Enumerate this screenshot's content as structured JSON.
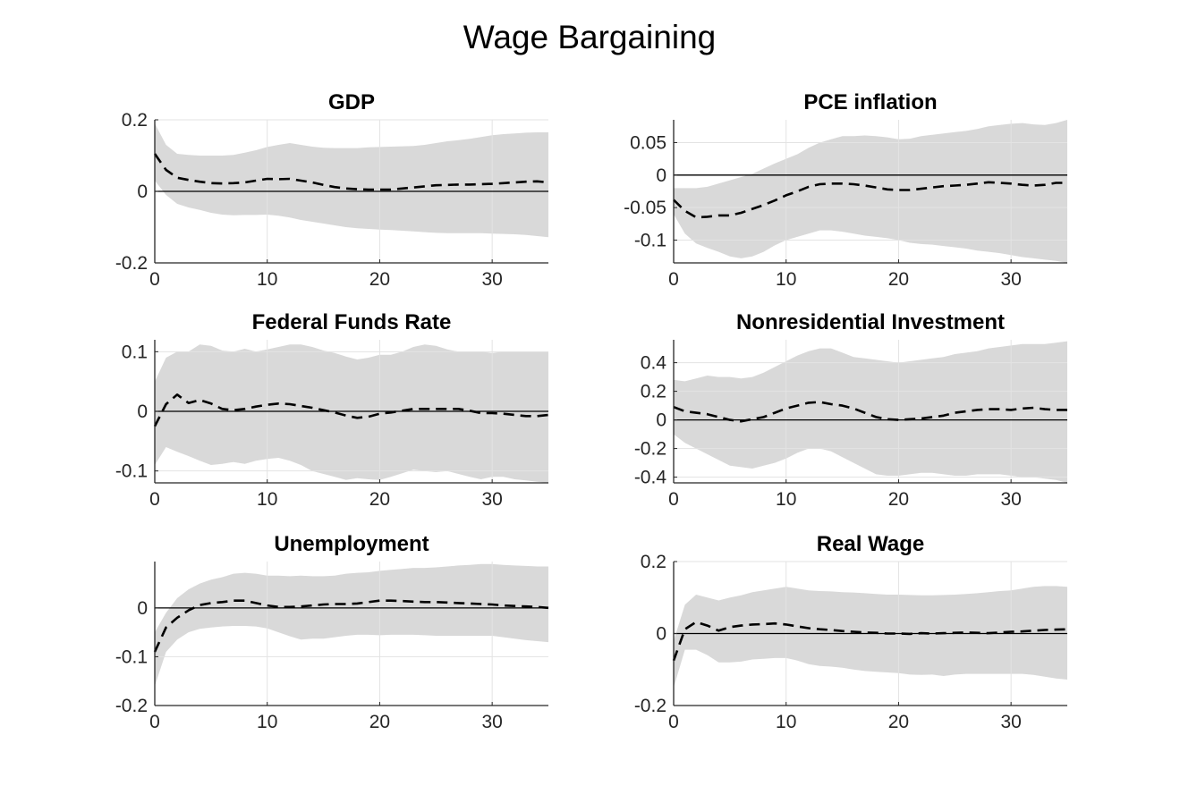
{
  "figure": {
    "title": "Wage Bargaining"
  },
  "chart_data": [
    {
      "type": "line",
      "title": "GDP",
      "xlim": [
        0,
        35
      ],
      "ylim": [
        -0.2,
        0.2
      ],
      "xticks": [
        0,
        10,
        20,
        30
      ],
      "xtick_labels": [
        "0",
        "10",
        "20",
        "30"
      ],
      "yticks": [
        -0.2,
        0,
        0.2
      ],
      "ytick_labels": [
        "-0.2",
        "0",
        "0.2"
      ],
      "grid": true,
      "x": [
        0,
        1,
        2,
        3,
        4,
        5,
        6,
        7,
        8,
        9,
        10,
        11,
        12,
        13,
        14,
        15,
        16,
        17,
        18,
        19,
        20,
        21,
        22,
        23,
        24,
        25,
        26,
        27,
        28,
        29,
        30,
        31,
        32,
        33,
        34,
        35
      ],
      "median": [
        0.105,
        0.06,
        0.038,
        0.032,
        0.027,
        0.023,
        0.022,
        0.023,
        0.025,
        0.03,
        0.035,
        0.034,
        0.035,
        0.03,
        0.025,
        0.018,
        0.012,
        0.008,
        0.006,
        0.005,
        0.005,
        0.005,
        0.008,
        0.011,
        0.014,
        0.017,
        0.018,
        0.019,
        0.019,
        0.02,
        0.021,
        0.023,
        0.025,
        0.027,
        0.028,
        0.025
      ],
      "band_upper": [
        0.19,
        0.13,
        0.105,
        0.102,
        0.1,
        0.1,
        0.1,
        0.102,
        0.108,
        0.115,
        0.124,
        0.13,
        0.135,
        0.13,
        0.125,
        0.122,
        0.121,
        0.121,
        0.121,
        0.123,
        0.124,
        0.125,
        0.126,
        0.127,
        0.13,
        0.135,
        0.14,
        0.143,
        0.147,
        0.152,
        0.157,
        0.16,
        0.162,
        0.164,
        0.165,
        0.165
      ],
      "band_lower": [
        0.03,
        -0.01,
        -0.035,
        -0.045,
        -0.052,
        -0.06,
        -0.065,
        -0.067,
        -0.066,
        -0.066,
        -0.065,
        -0.068,
        -0.073,
        -0.08,
        -0.085,
        -0.09,
        -0.095,
        -0.1,
        -0.103,
        -0.105,
        -0.107,
        -0.108,
        -0.11,
        -0.112,
        -0.114,
        -0.116,
        -0.117,
        -0.117,
        -0.117,
        -0.117,
        -0.118,
        -0.119,
        -0.12,
        -0.122,
        -0.125,
        -0.128
      ],
      "zero_line": 0
    },
    {
      "type": "line",
      "title": "PCE inflation",
      "xlim": [
        0,
        35
      ],
      "ylim": [
        -0.135,
        0.085
      ],
      "xticks": [
        0,
        10,
        20,
        30
      ],
      "xtick_labels": [
        "0",
        "10",
        "20",
        "30"
      ],
      "yticks": [
        -0.1,
        -0.05,
        0,
        0.05
      ],
      "ytick_labels": [
        "-0.1",
        "-0.05",
        "0",
        "0.05"
      ],
      "grid": true,
      "x": [
        0,
        1,
        2,
        3,
        4,
        5,
        6,
        7,
        8,
        9,
        10,
        11,
        12,
        13,
        14,
        15,
        16,
        17,
        18,
        19,
        20,
        21,
        22,
        23,
        24,
        25,
        26,
        27,
        28,
        29,
        30,
        31,
        32,
        33,
        34,
        35
      ],
      "median": [
        -0.038,
        -0.055,
        -0.065,
        -0.064,
        -0.062,
        -0.062,
        -0.058,
        -0.052,
        -0.046,
        -0.039,
        -0.031,
        -0.025,
        -0.018,
        -0.014,
        -0.013,
        -0.013,
        -0.014,
        -0.016,
        -0.019,
        -0.022,
        -0.023,
        -0.023,
        -0.021,
        -0.019,
        -0.017,
        -0.016,
        -0.015,
        -0.013,
        -0.011,
        -0.012,
        -0.013,
        -0.015,
        -0.016,
        -0.015,
        -0.012,
        -0.012
      ],
      "band_upper": [
        -0.02,
        -0.02,
        -0.02,
        -0.018,
        -0.013,
        -0.008,
        -0.003,
        0.002,
        0.01,
        0.018,
        0.025,
        0.032,
        0.042,
        0.05,
        0.055,
        0.06,
        0.06,
        0.061,
        0.06,
        0.058,
        0.055,
        0.056,
        0.06,
        0.062,
        0.064,
        0.066,
        0.068,
        0.071,
        0.075,
        0.077,
        0.079,
        0.08,
        0.078,
        0.077,
        0.08,
        0.085
      ],
      "band_lower": [
        -0.06,
        -0.09,
        -0.105,
        -0.112,
        -0.118,
        -0.125,
        -0.128,
        -0.125,
        -0.118,
        -0.108,
        -0.1,
        -0.095,
        -0.09,
        -0.085,
        -0.085,
        -0.087,
        -0.09,
        -0.093,
        -0.095,
        -0.097,
        -0.1,
        -0.104,
        -0.106,
        -0.107,
        -0.109,
        -0.111,
        -0.113,
        -0.116,
        -0.118,
        -0.12,
        -0.123,
        -0.126,
        -0.128,
        -0.13,
        -0.132,
        -0.135
      ],
      "zero_line": 0
    },
    {
      "type": "line",
      "title": "Federal Funds Rate",
      "xlim": [
        0,
        35
      ],
      "ylim": [
        -0.12,
        0.12
      ],
      "xticks": [
        0,
        10,
        20,
        30
      ],
      "xtick_labels": [
        "0",
        "10",
        "20",
        "30"
      ],
      "yticks": [
        -0.1,
        0,
        0.1
      ],
      "ytick_labels": [
        "-0.1",
        "0",
        "0.1"
      ],
      "grid": true,
      "x": [
        0,
        1,
        2,
        3,
        4,
        5,
        6,
        7,
        8,
        9,
        10,
        11,
        12,
        13,
        14,
        15,
        16,
        17,
        18,
        19,
        20,
        21,
        22,
        23,
        24,
        25,
        26,
        27,
        28,
        29,
        30,
        31,
        32,
        33,
        34,
        35
      ],
      "median": [
        -0.025,
        0.012,
        0.028,
        0.014,
        0.019,
        0.013,
        0.004,
        0.002,
        0.004,
        0.008,
        0.011,
        0.013,
        0.012,
        0.009,
        0.006,
        0.002,
        -0.002,
        -0.007,
        -0.011,
        -0.009,
        -0.004,
        -0.002,
        0.001,
        0.004,
        0.004,
        0.004,
        0.004,
        0.004,
        0.001,
        -0.003,
        -0.003,
        -0.004,
        -0.006,
        -0.008,
        -0.008,
        -0.006
      ],
      "band_upper": [
        0.05,
        0.09,
        0.1,
        0.1,
        0.112,
        0.11,
        0.102,
        0.1,
        0.105,
        0.1,
        0.104,
        0.108,
        0.112,
        0.112,
        0.108,
        0.102,
        0.098,
        0.092,
        0.087,
        0.09,
        0.095,
        0.095,
        0.1,
        0.108,
        0.112,
        0.11,
        0.104,
        0.1,
        0.1,
        0.1,
        0.098,
        0.1,
        0.1,
        0.1,
        0.1,
        0.1
      ],
      "band_lower": [
        -0.09,
        -0.06,
        -0.068,
        -0.075,
        -0.083,
        -0.09,
        -0.088,
        -0.085,
        -0.088,
        -0.083,
        -0.08,
        -0.078,
        -0.083,
        -0.09,
        -0.1,
        -0.105,
        -0.11,
        -0.115,
        -0.112,
        -0.114,
        -0.115,
        -0.11,
        -0.104,
        -0.098,
        -0.1,
        -0.102,
        -0.1,
        -0.105,
        -0.11,
        -0.114,
        -0.11,
        -0.11,
        -0.114,
        -0.116,
        -0.118,
        -0.12
      ],
      "zero_line": 0
    },
    {
      "type": "line",
      "title": "Nonresidential Investment",
      "xlim": [
        0,
        35
      ],
      "ylim": [
        -0.44,
        0.56
      ],
      "xticks": [
        0,
        10,
        20,
        30
      ],
      "xtick_labels": [
        "0",
        "10",
        "20",
        "30"
      ],
      "yticks": [
        -0.4,
        -0.2,
        0,
        0.2,
        0.4
      ],
      "ytick_labels": [
        "-0.4",
        "-0.2",
        "0",
        "0.2",
        "0.4"
      ],
      "grid": true,
      "x": [
        0,
        1,
        2,
        3,
        4,
        5,
        6,
        7,
        8,
        9,
        10,
        11,
        12,
        13,
        14,
        15,
        16,
        17,
        18,
        19,
        20,
        21,
        22,
        23,
        24,
        25,
        26,
        27,
        28,
        29,
        30,
        31,
        32,
        33,
        34,
        35
      ],
      "median": [
        0.09,
        0.06,
        0.05,
        0.04,
        0.02,
        0.0,
        -0.01,
        0.005,
        0.02,
        0.05,
        0.08,
        0.1,
        0.12,
        0.125,
        0.11,
        0.1,
        0.08,
        0.05,
        0.02,
        0.005,
        0.0,
        0.005,
        0.01,
        0.02,
        0.03,
        0.05,
        0.06,
        0.07,
        0.075,
        0.075,
        0.07,
        0.08,
        0.085,
        0.075,
        0.07,
        0.07
      ],
      "band_upper": [
        0.28,
        0.27,
        0.29,
        0.31,
        0.3,
        0.3,
        0.29,
        0.3,
        0.33,
        0.37,
        0.41,
        0.45,
        0.48,
        0.5,
        0.5,
        0.47,
        0.44,
        0.43,
        0.42,
        0.41,
        0.4,
        0.41,
        0.42,
        0.43,
        0.44,
        0.46,
        0.47,
        0.48,
        0.5,
        0.51,
        0.52,
        0.53,
        0.53,
        0.53,
        0.54,
        0.55
      ],
      "band_lower": [
        -0.1,
        -0.16,
        -0.2,
        -0.24,
        -0.28,
        -0.32,
        -0.33,
        -0.34,
        -0.32,
        -0.3,
        -0.27,
        -0.23,
        -0.2,
        -0.2,
        -0.22,
        -0.26,
        -0.3,
        -0.34,
        -0.38,
        -0.39,
        -0.39,
        -0.38,
        -0.37,
        -0.37,
        -0.38,
        -0.39,
        -0.39,
        -0.38,
        -0.38,
        -0.38,
        -0.39,
        -0.4,
        -0.4,
        -0.41,
        -0.42,
        -0.44
      ],
      "zero_line": 0
    },
    {
      "type": "line",
      "title": "Unemployment",
      "xlim": [
        0,
        35
      ],
      "ylim": [
        -0.2,
        0.095
      ],
      "xticks": [
        0,
        10,
        20,
        30
      ],
      "xtick_labels": [
        "0",
        "10",
        "20",
        "30"
      ],
      "yticks": [
        -0.2,
        -0.1,
        0
      ],
      "ytick_labels": [
        "-0.2",
        "-0.1",
        "0"
      ],
      "grid": true,
      "x": [
        0,
        1,
        2,
        3,
        4,
        5,
        6,
        7,
        8,
        9,
        10,
        11,
        12,
        13,
        14,
        15,
        16,
        17,
        18,
        19,
        20,
        21,
        22,
        23,
        24,
        25,
        26,
        27,
        28,
        29,
        30,
        31,
        32,
        33,
        34,
        35
      ],
      "median": [
        -0.09,
        -0.04,
        -0.02,
        -0.005,
        0.006,
        0.01,
        0.012,
        0.015,
        0.015,
        0.01,
        0.005,
        0.002,
        0.002,
        0.003,
        0.005,
        0.007,
        0.008,
        0.008,
        0.009,
        0.012,
        0.015,
        0.015,
        0.014,
        0.013,
        0.012,
        0.012,
        0.011,
        0.01,
        0.009,
        0.008,
        0.007,
        0.005,
        0.004,
        0.003,
        0.002,
        0.0
      ],
      "band_upper": [
        -0.05,
        -0.01,
        0.02,
        0.038,
        0.05,
        0.058,
        0.063,
        0.07,
        0.072,
        0.07,
        0.066,
        0.066,
        0.065,
        0.066,
        0.065,
        0.065,
        0.066,
        0.07,
        0.072,
        0.073,
        0.076,
        0.078,
        0.08,
        0.082,
        0.082,
        0.083,
        0.085,
        0.087,
        0.088,
        0.09,
        0.09,
        0.088,
        0.087,
        0.086,
        0.085,
        0.085
      ],
      "band_lower": [
        -0.16,
        -0.09,
        -0.065,
        -0.05,
        -0.043,
        -0.04,
        -0.038,
        -0.037,
        -0.037,
        -0.038,
        -0.042,
        -0.05,
        -0.058,
        -0.065,
        -0.063,
        -0.063,
        -0.06,
        -0.057,
        -0.055,
        -0.055,
        -0.056,
        -0.055,
        -0.055,
        -0.055,
        -0.056,
        -0.057,
        -0.057,
        -0.057,
        -0.057,
        -0.057,
        -0.057,
        -0.06,
        -0.063,
        -0.066,
        -0.068,
        -0.07
      ],
      "zero_line": 0
    },
    {
      "type": "line",
      "title": "Real Wage",
      "xlim": [
        0,
        35
      ],
      "ylim": [
        -0.2,
        0.2
      ],
      "xticks": [
        0,
        10,
        20,
        30
      ],
      "xtick_labels": [
        "0",
        "10",
        "20",
        "30"
      ],
      "yticks": [
        -0.2,
        0,
        0.2
      ],
      "ytick_labels": [
        "-0.2",
        "0",
        "0.2"
      ],
      "grid": true,
      "x": [
        0,
        1,
        2,
        3,
        4,
        5,
        6,
        7,
        8,
        9,
        10,
        11,
        12,
        13,
        14,
        15,
        16,
        17,
        18,
        19,
        20,
        21,
        22,
        23,
        24,
        25,
        26,
        27,
        28,
        29,
        30,
        31,
        32,
        33,
        34,
        35
      ],
      "median": [
        -0.075,
        0.012,
        0.032,
        0.022,
        0.008,
        0.018,
        0.022,
        0.025,
        0.026,
        0.028,
        0.025,
        0.02,
        0.015,
        0.012,
        0.01,
        0.007,
        0.005,
        0.003,
        0.002,
        0.0,
        0.0,
        -0.001,
        0.001,
        0.0,
        0.001,
        0.002,
        0.003,
        0.002,
        0.001,
        0.003,
        0.005,
        0.006,
        0.008,
        0.01,
        0.011,
        0.012
      ],
      "band_upper": [
        -0.02,
        0.08,
        0.108,
        0.1,
        0.092,
        0.1,
        0.106,
        0.115,
        0.12,
        0.125,
        0.13,
        0.125,
        0.12,
        0.118,
        0.117,
        0.115,
        0.114,
        0.112,
        0.11,
        0.108,
        0.108,
        0.107,
        0.106,
        0.106,
        0.107,
        0.108,
        0.11,
        0.112,
        0.115,
        0.118,
        0.12,
        0.125,
        0.13,
        0.132,
        0.132,
        0.13
      ],
      "band_lower": [
        -0.15,
        -0.045,
        -0.045,
        -0.06,
        -0.08,
        -0.08,
        -0.078,
        -0.072,
        -0.07,
        -0.068,
        -0.068,
        -0.075,
        -0.085,
        -0.09,
        -0.092,
        -0.095,
        -0.1,
        -0.104,
        -0.106,
        -0.108,
        -0.11,
        -0.114,
        -0.115,
        -0.114,
        -0.118,
        -0.114,
        -0.112,
        -0.112,
        -0.112,
        -0.112,
        -0.112,
        -0.112,
        -0.115,
        -0.12,
        -0.125,
        -0.128
      ],
      "zero_line": 0
    }
  ]
}
